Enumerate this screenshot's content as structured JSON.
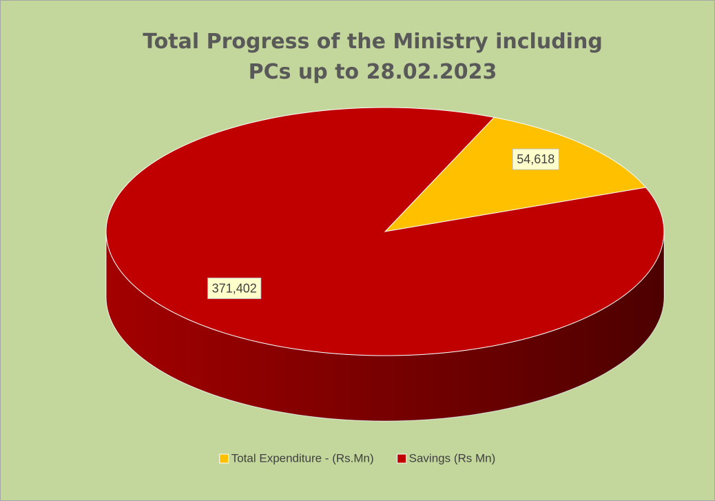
{
  "chart_data": {
    "type": "pie",
    "title": "Total Progress of the Ministry including PCs  up to 28.02.2023",
    "categories": [
      "Total Expenditure -  (Rs.Mn)",
      "Savings (Rs Mn)"
    ],
    "values": [
      54618,
      371402
    ],
    "value_labels": [
      "54,618",
      "371,402"
    ],
    "colors": [
      "#ffc000",
      "#c00000"
    ],
    "legend": "bottom"
  }
}
